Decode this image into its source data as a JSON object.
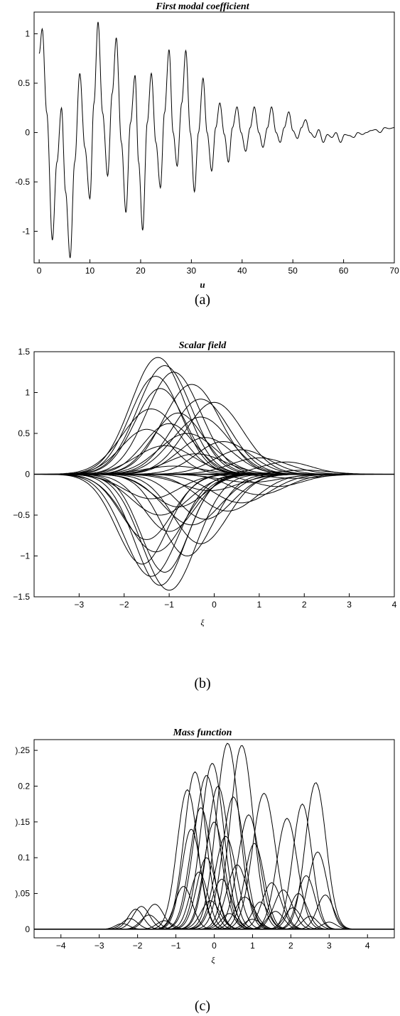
{
  "chart_data": [
    {
      "type": "line",
      "title": "First modal coefficient",
      "xlabel": "u",
      "ylabel": "",
      "caption": "(a)",
      "xlim": [
        -1,
        70
      ],
      "ylim": [
        -1.32,
        1.22
      ],
      "xticks": [
        0,
        10,
        20,
        30,
        40,
        50,
        60,
        70
      ],
      "yticks": [
        -1,
        -0.5,
        0,
        0.5,
        1
      ],
      "xtick_labels": [
        "0",
        "10",
        "20",
        "30",
        "40",
        "50",
        "60",
        "70"
      ],
      "ytick_labels": [
        "-1",
        "-0.5",
        "0",
        "0.5",
        "1"
      ],
      "grid": false,
      "series": [
        {
          "x": [
            0,
            0.6,
            1.5,
            2.6,
            3.5,
            4.4,
            5.2,
            6.1,
            7.0,
            8.0,
            9.0,
            10.0,
            10.8,
            11.6,
            12.5,
            13.5,
            14.4,
            15.2,
            16.2,
            17.1,
            18.0,
            18.9,
            19.6,
            20.4,
            21.3,
            22.1,
            23.0,
            23.9,
            24.7,
            25.6,
            26.4,
            27.2,
            28.1,
            28.9,
            29.8,
            30.6,
            31.4,
            32.3,
            33.1,
            34.0,
            34.8,
            35.6,
            36.5,
            37.3,
            38.1,
            39.0,
            39.8,
            40.7,
            41.6,
            42.4,
            43.3,
            44.1,
            45.0,
            45.8,
            46.7,
            47.5,
            48.3,
            49.2,
            50.0,
            50.9,
            51.7,
            52.5,
            53.4,
            54.3,
            55.1,
            56.0,
            56.8,
            57.7,
            58.5,
            59.4,
            60.2,
            61.1,
            62.0,
            62.8,
            63.7,
            64.5,
            65.4,
            66.3,
            67.2,
            68.1,
            69.0,
            70.0
          ],
          "y": [
            0.8,
            1.05,
            0.2,
            -1.09,
            -0.3,
            0.25,
            -0.6,
            -1.27,
            -0.3,
            0.6,
            -0.15,
            -0.67,
            0.3,
            1.12,
            0.2,
            -0.44,
            0.4,
            0.96,
            -0.1,
            -0.81,
            0.1,
            0.58,
            -0.3,
            -0.99,
            0.1,
            0.6,
            -0.1,
            -0.56,
            0.2,
            0.84,
            0.0,
            -0.34,
            0.3,
            0.83,
            0.0,
            -0.6,
            0.0,
            0.55,
            0.0,
            -0.39,
            0.05,
            0.3,
            -0.02,
            -0.3,
            0.05,
            0.26,
            0.0,
            -0.19,
            0.05,
            0.26,
            0.0,
            -0.15,
            0.05,
            0.26,
            0.0,
            -0.1,
            0.05,
            0.21,
            0.02,
            -0.06,
            0.05,
            0.13,
            0.0,
            -0.05,
            0.03,
            -0.1,
            -0.02,
            -0.05,
            0.0,
            -0.1,
            -0.02,
            -0.03,
            -0.05,
            0.0,
            -0.02,
            0.0,
            0.02,
            0.03,
            0.0,
            0.05,
            0.04,
            0.05
          ]
        }
      ]
    },
    {
      "type": "line",
      "title": "Scalar field",
      "xlabel": "ξ",
      "ylabel": "",
      "caption": "(b)",
      "xlim": [
        -4,
        4
      ],
      "ylim": [
        -1.5,
        1.5
      ],
      "xticks": [
        -3,
        -2,
        -1,
        0,
        1,
        2,
        3,
        4
      ],
      "yticks": [
        -1.5,
        -1,
        -0.5,
        0,
        0.5,
        1,
        1.5
      ],
      "xtick_labels": [
        "−3",
        "−2",
        "−1",
        "0",
        "1",
        "2",
        "3",
        "4"
      ],
      "ytick_labels": [
        "−1.5",
        "−1",
        "−0.5",
        "0",
        "0.5",
        "1",
        "1.5"
      ],
      "grid": false,
      "bumps": [
        [
          1.43,
          -1.25,
          0.85
        ],
        [
          1.33,
          -1.1,
          0.85
        ],
        [
          1.25,
          -0.9,
          0.85
        ],
        [
          1.2,
          -1.3,
          0.8
        ],
        [
          1.1,
          -0.5,
          0.9
        ],
        [
          1.05,
          -1.2,
          0.8
        ],
        [
          0.92,
          -0.3,
          0.9
        ],
        [
          0.88,
          0.0,
          0.9
        ],
        [
          0.8,
          -1.4,
          0.9
        ],
        [
          0.75,
          -0.8,
          0.8
        ],
        [
          0.7,
          -0.3,
          0.9
        ],
        [
          0.62,
          -1.0,
          0.8
        ],
        [
          0.55,
          -1.5,
          0.8
        ],
        [
          0.5,
          -0.6,
          0.9
        ],
        [
          0.45,
          -0.2,
          0.85
        ],
        [
          0.4,
          0.2,
          0.85
        ],
        [
          0.35,
          -1.1,
          0.9
        ],
        [
          0.3,
          0.6,
          0.85
        ],
        [
          0.25,
          -0.4,
          0.9
        ],
        [
          0.2,
          1.0,
          0.9
        ],
        [
          0.15,
          1.6,
          0.8
        ],
        [
          0.1,
          -0.9,
          0.9
        ],
        [
          0.05,
          2.0,
          0.8
        ],
        [
          -1.42,
          -1.0,
          0.85
        ],
        [
          -1.36,
          -1.2,
          0.8
        ],
        [
          -1.25,
          -1.4,
          0.85
        ],
        [
          -1.2,
          -1.1,
          0.75
        ],
        [
          -1.1,
          -1.6,
          0.8
        ],
        [
          -1.0,
          -0.6,
          0.8
        ],
        [
          -0.95,
          -1.3,
          0.9
        ],
        [
          -0.85,
          -0.3,
          0.85
        ],
        [
          -0.8,
          -1.5,
          0.8
        ],
        [
          -0.7,
          -1.0,
          0.8
        ],
        [
          -0.62,
          -0.5,
          0.9
        ],
        [
          -0.55,
          -0.2,
          0.85
        ],
        [
          -0.5,
          -1.2,
          0.9
        ],
        [
          -0.45,
          0.3,
          0.9
        ],
        [
          -0.4,
          -0.8,
          0.8
        ],
        [
          -0.35,
          0.6,
          0.9
        ],
        [
          -0.3,
          -1.4,
          0.85
        ],
        [
          -0.25,
          1.0,
          0.85
        ],
        [
          -0.2,
          -0.1,
          0.9
        ],
        [
          -0.15,
          1.4,
          0.8
        ],
        [
          -0.1,
          0.8,
          0.9
        ],
        [
          -0.05,
          1.8,
          0.8
        ]
      ]
    },
    {
      "type": "line",
      "title": "Mass function",
      "xlabel": "ξ",
      "ylabel": "",
      "caption": "(c)",
      "xlim": [
        -4.7,
        4.7
      ],
      "ylim": [
        -0.012,
        0.265
      ],
      "xticks": [
        -4,
        -3,
        -2,
        -1,
        0,
        1,
        2,
        3,
        4
      ],
      "yticks": [
        0,
        0.05,
        0.1,
        0.15,
        0.2,
        0.25
      ],
      "xtick_labels": [
        "−4",
        "−3",
        "−2",
        "−1",
        "0",
        "1",
        "2",
        "3",
        "4"
      ],
      "ytick_labels": [
        "0",
        ").05",
        "0.1",
        ").15",
        "0.2",
        ").25"
      ],
      "grid": false,
      "peaks": [
        [
          0.26,
          0.35,
          0.42
        ],
        [
          0.257,
          0.72,
          0.42
        ],
        [
          0.232,
          -0.05,
          0.42
        ],
        [
          0.22,
          -0.5,
          0.4
        ],
        [
          0.215,
          -0.2,
          0.45
        ],
        [
          0.205,
          2.65,
          0.38
        ],
        [
          0.2,
          0.1,
          0.4
        ],
        [
          0.195,
          -0.7,
          0.38
        ],
        [
          0.19,
          1.3,
          0.42
        ],
        [
          0.185,
          0.5,
          0.4
        ],
        [
          0.175,
          2.3,
          0.35
        ],
        [
          0.17,
          -0.35,
          0.4
        ],
        [
          0.16,
          0.9,
          0.4
        ],
        [
          0.155,
          1.9,
          0.38
        ],
        [
          0.15,
          0.0,
          0.38
        ],
        [
          0.14,
          -0.6,
          0.35
        ],
        [
          0.13,
          0.3,
          0.4
        ],
        [
          0.12,
          1.05,
          0.36
        ],
        [
          0.108,
          2.7,
          0.35
        ],
        [
          0.1,
          -0.2,
          0.36
        ],
        [
          0.09,
          0.6,
          0.38
        ],
        [
          0.08,
          -0.4,
          0.33
        ],
        [
          0.075,
          2.4,
          0.32
        ],
        [
          0.07,
          0.2,
          0.36
        ],
        [
          0.065,
          1.5,
          0.35
        ],
        [
          0.06,
          -0.8,
          0.32
        ],
        [
          0.055,
          1.8,
          0.34
        ],
        [
          0.05,
          2.2,
          0.32
        ],
        [
          0.048,
          2.9,
          0.3
        ],
        [
          0.045,
          0.8,
          0.36
        ],
        [
          0.04,
          -0.1,
          0.34
        ],
        [
          0.038,
          1.2,
          0.3
        ],
        [
          0.035,
          -1.55,
          0.32
        ],
        [
          0.032,
          -1.9,
          0.3
        ],
        [
          0.03,
          2.05,
          0.3
        ],
        [
          0.028,
          -2.05,
          0.28
        ],
        [
          0.025,
          1.6,
          0.3
        ],
        [
          0.022,
          0.4,
          0.3
        ],
        [
          0.02,
          -1.7,
          0.3
        ],
        [
          0.018,
          2.5,
          0.28
        ],
        [
          0.015,
          -2.2,
          0.28
        ],
        [
          0.014,
          1.0,
          0.3
        ],
        [
          0.012,
          -1.3,
          0.28
        ],
        [
          0.01,
          3.0,
          0.26
        ],
        [
          0.008,
          -2.4,
          0.25
        ]
      ]
    }
  ]
}
